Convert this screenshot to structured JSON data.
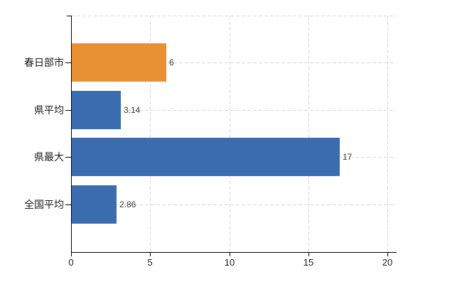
{
  "chart_data": {
    "type": "bar",
    "orientation": "horizontal",
    "categories": [
      "春日部市",
      "県平均",
      "県最大",
      "全国平均"
    ],
    "values": [
      6,
      3.14,
      17,
      2.86
    ],
    "value_labels": [
      "6",
      "3.14",
      "17",
      "2.86"
    ],
    "bar_colors": [
      "#E89133",
      "#3B6CAF",
      "#3B6CAF",
      "#3B6CAF"
    ],
    "xlim": [
      0,
      20
    ],
    "xticks": [
      0,
      5,
      10,
      15,
      20
    ],
    "xtick_labels": [
      "0",
      "5",
      "10",
      "15",
      "20"
    ],
    "grid": "dashed",
    "gridline_color": "#D8D8D8",
    "axis_color": "#000000",
    "highlight_color": "#E89133",
    "series_color": "#3B6CAF",
    "legend": "none",
    "title": ""
  }
}
